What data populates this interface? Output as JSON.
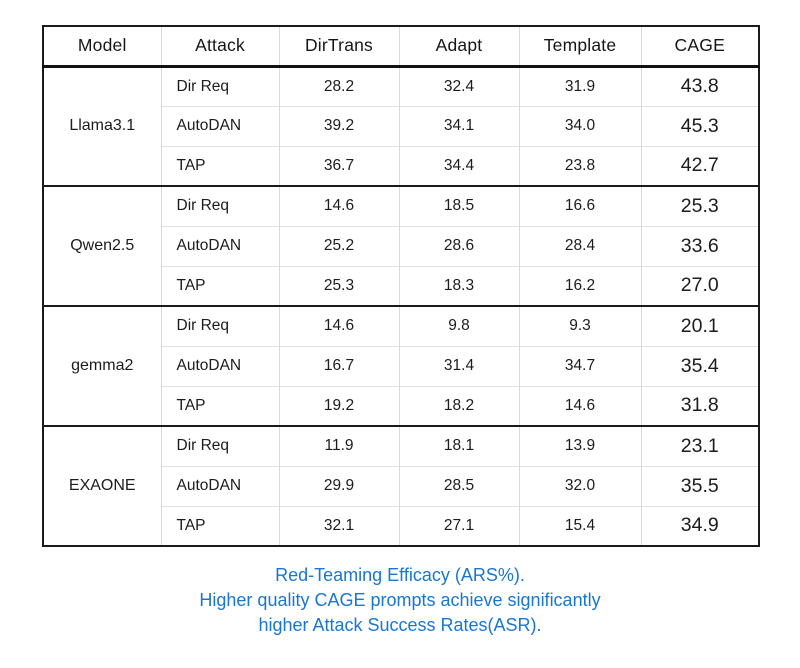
{
  "chart_data": {
    "type": "table",
    "title": "Red-Teaming Efficacy (ARS%)",
    "columns": [
      "Model",
      "Attack",
      "DirTrans",
      "Adapt",
      "Template",
      "CAGE"
    ],
    "groups": [
      {
        "model": "Llama3.1",
        "rows": [
          {
            "attack": "Dir Req",
            "values": [
              "28.2",
              "32.4",
              "31.9",
              "43.8"
            ]
          },
          {
            "attack": "AutoDAN",
            "values": [
              "39.2",
              "34.1",
              "34.0",
              "45.3"
            ]
          },
          {
            "attack": "TAP",
            "values": [
              "36.7",
              "34.4",
              "23.8",
              "42.7"
            ]
          }
        ]
      },
      {
        "model": "Qwen2.5",
        "rows": [
          {
            "attack": "Dir Req",
            "values": [
              "14.6",
              "18.5",
              "16.6",
              "25.3"
            ]
          },
          {
            "attack": "AutoDAN",
            "values": [
              "25.2",
              "28.6",
              "28.4",
              "33.6"
            ]
          },
          {
            "attack": "TAP",
            "values": [
              "25.3",
              "18.3",
              "16.2",
              "27.0"
            ]
          }
        ]
      },
      {
        "model": "gemma2",
        "rows": [
          {
            "attack": "Dir Req",
            "values": [
              "14.6",
              "9.8",
              "9.3",
              "20.1"
            ]
          },
          {
            "attack": "AutoDAN",
            "values": [
              "16.7",
              "31.4",
              "34.7",
              "35.4"
            ]
          },
          {
            "attack": "TAP",
            "values": [
              "19.2",
              "18.2",
              "14.6",
              "31.8"
            ]
          }
        ]
      },
      {
        "model": "EXAONE",
        "rows": [
          {
            "attack": "Dir Req",
            "values": [
              "11.9",
              "18.1",
              "13.9",
              "23.1"
            ]
          },
          {
            "attack": "AutoDAN",
            "values": [
              "29.9",
              "28.5",
              "32.0",
              "35.5"
            ]
          },
          {
            "attack": "TAP",
            "values": [
              "32.1",
              "27.1",
              "15.4",
              "34.9"
            ]
          }
        ]
      }
    ]
  },
  "caption": {
    "line1": "Red-Teaming Efficacy (ARS%).",
    "line2": "Higher quality CAGE prompts achieve significantly",
    "line3": "higher Attack Success Rates(ASR)."
  },
  "colors": {
    "caption_blue": "#1976d2",
    "border_black": "#1a1a1a",
    "grid_gray": "#dadada"
  }
}
